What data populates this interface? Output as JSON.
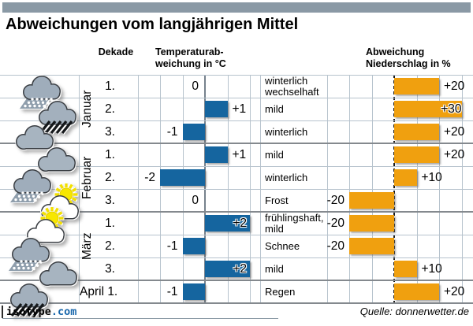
{
  "title": "Abweichungen vom langjährigen Mittel",
  "source": "Quelle: donnerwetter.de",
  "branding": {
    "name": "isotype",
    "tld": ".com"
  },
  "headers": {
    "dekade": "Dekade",
    "temperature": [
      "Temperaturab-",
      "weichung in °C"
    ],
    "precipitation": [
      "Abweichung",
      "Niederschlag in %"
    ]
  },
  "colors": {
    "topbar": "#8a99a5",
    "temp_bar": "#15659f",
    "precip_bar": "#f0a00f",
    "brand_blue": "#1766ab",
    "grid_light": "#b7c3cd",
    "grid_dark": "#84898e"
  },
  "chart_data": {
    "type": "bar",
    "orientation": "horizontal",
    "title": "Abweichungen vom langjährigen Mittel",
    "temp_axis": {
      "label": "Temperaturab-weichung in °C",
      "unit": "°C",
      "min": -3,
      "max": 3,
      "gridlines": [
        -3,
        -2,
        -1,
        1,
        2
      ]
    },
    "precip_axis": {
      "label": "Abweichung Niederschlag in %",
      "unit": "%",
      "min": -30,
      "max": 30,
      "gridlines": [
        -30,
        -20,
        -10,
        10,
        20,
        30
      ]
    },
    "months": [
      {
        "label": "Januar",
        "rows": 3,
        "inline": false
      },
      {
        "label": "Februar",
        "rows": 3,
        "inline": false
      },
      {
        "label": "März",
        "rows": 3,
        "inline": false
      },
      {
        "label": "April 1.",
        "rows": 1,
        "inline": true
      }
    ],
    "rows": [
      {
        "month": "Januar",
        "decade": "1.",
        "icon": "snow-cloud",
        "temp": 0,
        "temp_label": "0",
        "weather": "winterlich wechselhaft",
        "precip": 20,
        "precip_label": "+20"
      },
      {
        "month": "Januar",
        "decade": "2.",
        "icon": "rain-cloud",
        "temp": 1,
        "temp_label": "+1",
        "weather": "mild",
        "precip": 30,
        "precip_label": "+30"
      },
      {
        "month": "Januar",
        "decade": "3.",
        "icon": "cloud",
        "temp": -1,
        "temp_label": "-1",
        "weather": "winterlich",
        "precip": 20,
        "precip_label": "+20"
      },
      {
        "month": "Februar",
        "decade": "1.",
        "icon": "cloud",
        "temp": 1,
        "temp_label": "+1",
        "weather": "mild",
        "precip": 20,
        "precip_label": "+20"
      },
      {
        "month": "Februar",
        "decade": "2.",
        "icon": "snow-cloud",
        "temp": -2,
        "temp_label": "-2",
        "weather": "winterlich",
        "precip": 10,
        "precip_label": "+10"
      },
      {
        "month": "Februar",
        "decade": "3.",
        "icon": "sun-cloud",
        "temp": 0,
        "temp_label": "0",
        "weather": "Frost",
        "precip": -20,
        "precip_label": "-20"
      },
      {
        "month": "März",
        "decade": "1.",
        "icon": "sun-cloud",
        "temp": 2,
        "temp_label": "+2",
        "weather": "frühlingshaft, mild",
        "precip": -20,
        "precip_label": "-20"
      },
      {
        "month": "März",
        "decade": "2.",
        "icon": "snow-cloud",
        "temp": -1,
        "temp_label": "-1",
        "weather": "Schnee",
        "precip": -20,
        "precip_label": "-20"
      },
      {
        "month": "März",
        "decade": "3.",
        "icon": "cloud",
        "temp": 2,
        "temp_label": "+2",
        "weather": "mild",
        "precip": 10,
        "precip_label": "+10"
      },
      {
        "month": "April",
        "decade": "",
        "icon": "rain-cloud",
        "temp": -1,
        "temp_label": "-1",
        "weather": "Regen",
        "precip": 20,
        "precip_label": "+20"
      }
    ]
  }
}
